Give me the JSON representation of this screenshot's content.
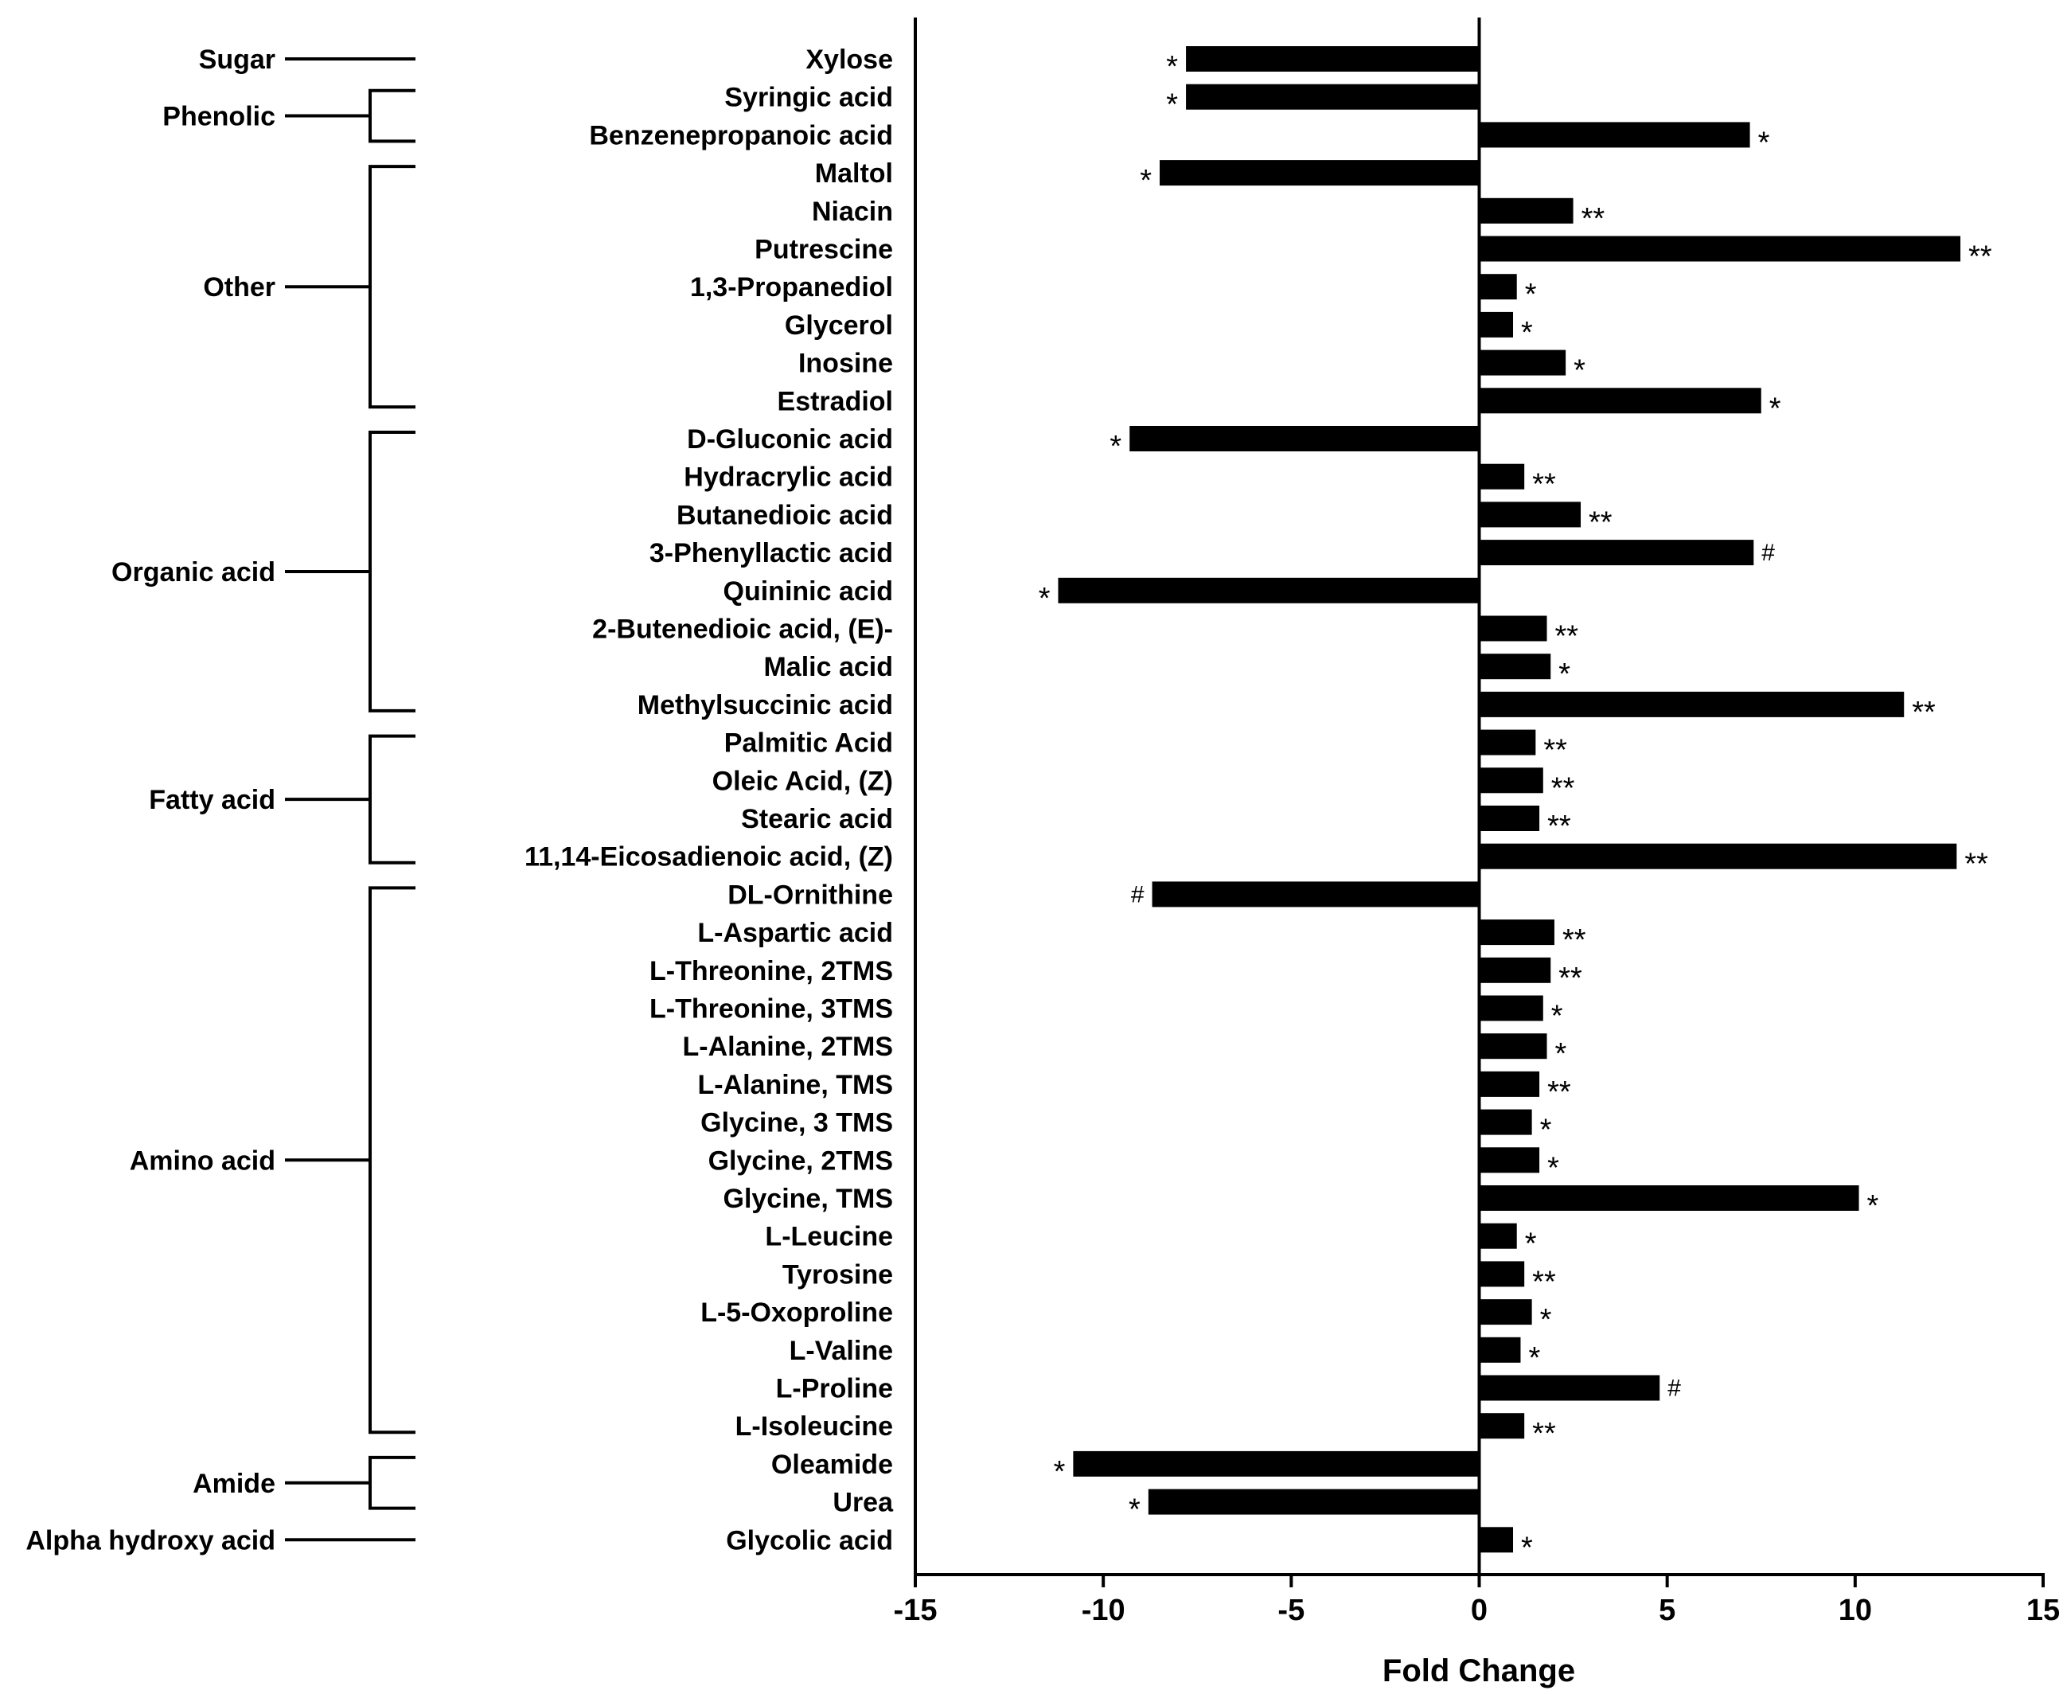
{
  "chart_data": {
    "type": "bar",
    "orientation": "horizontal",
    "xlabel": "Fold Change",
    "xlim": [
      -15,
      15
    ],
    "xticks": [
      -15,
      -10,
      -5,
      0,
      5,
      10,
      15
    ],
    "bars": [
      {
        "label": "Xylose",
        "value": -7.8,
        "sig": "*"
      },
      {
        "label": "Syringic acid",
        "value": -7.8,
        "sig": "*"
      },
      {
        "label": "Benzenepropanoic acid",
        "value": 7.2,
        "sig": "*"
      },
      {
        "label": "Maltol",
        "value": -8.5,
        "sig": "*"
      },
      {
        "label": "Niacin",
        "value": 2.5,
        "sig": "**"
      },
      {
        "label": "Putrescine",
        "value": 12.8,
        "sig": "**"
      },
      {
        "label": "1,3-Propanediol",
        "value": 1.0,
        "sig": "*"
      },
      {
        "label": "Glycerol",
        "value": 0.9,
        "sig": "*"
      },
      {
        "label": "Inosine",
        "value": 2.3,
        "sig": "*"
      },
      {
        "label": "Estradiol",
        "value": 7.5,
        "sig": "*"
      },
      {
        "label": "D-Gluconic acid",
        "value": -9.3,
        "sig": "*"
      },
      {
        "label": "Hydracrylic acid",
        "value": 1.2,
        "sig": "**"
      },
      {
        "label": "Butanedioic acid",
        "value": 2.7,
        "sig": "**"
      },
      {
        "label": "3-Phenyllactic acid",
        "value": 7.3,
        "sig": "#"
      },
      {
        "label": "Quininic acid",
        "value": -11.2,
        "sig": "*"
      },
      {
        "label": "2-Butenedioic acid, (E)-",
        "value": 1.8,
        "sig": "**"
      },
      {
        "label": "Malic acid",
        "value": 1.9,
        "sig": "*"
      },
      {
        "label": "Methylsuccinic acid",
        "value": 11.3,
        "sig": "**"
      },
      {
        "label": "Palmitic Acid",
        "value": 1.5,
        "sig": "**"
      },
      {
        "label": "Oleic Acid, (Z)",
        "value": 1.7,
        "sig": "**"
      },
      {
        "label": "Stearic acid",
        "value": 1.6,
        "sig": "**"
      },
      {
        "label": "11,14-Eicosadienoic acid, (Z)",
        "value": 12.7,
        "sig": "**"
      },
      {
        "label": "DL-Ornithine",
        "value": -8.7,
        "sig": "#"
      },
      {
        "label": "L-Aspartic acid",
        "value": 2.0,
        "sig": "**"
      },
      {
        "label": "L-Threonine, 2TMS",
        "value": 1.9,
        "sig": "**"
      },
      {
        "label": "L-Threonine, 3TMS",
        "value": 1.7,
        "sig": "*"
      },
      {
        "label": "L-Alanine, 2TMS",
        "value": 1.8,
        "sig": "*"
      },
      {
        "label": "L-Alanine, TMS",
        "value": 1.6,
        "sig": "**"
      },
      {
        "label": "Glycine, 3 TMS",
        "value": 1.4,
        "sig": "*"
      },
      {
        "label": "Glycine, 2TMS",
        "value": 1.6,
        "sig": "*"
      },
      {
        "label": "Glycine, TMS",
        "value": 10.1,
        "sig": "*"
      },
      {
        "label": "L-Leucine",
        "value": 1.0,
        "sig": "*"
      },
      {
        "label": "Tyrosine",
        "value": 1.2,
        "sig": "**"
      },
      {
        "label": "L-5-Oxoproline",
        "value": 1.4,
        "sig": "*"
      },
      {
        "label": "L-Valine",
        "value": 1.1,
        "sig": "*"
      },
      {
        "label": "L-Proline",
        "value": 4.8,
        "sig": "#"
      },
      {
        "label": "L-Isoleucine",
        "value": 1.2,
        "sig": "**"
      },
      {
        "label": "Oleamide",
        "value": -10.8,
        "sig": "*"
      },
      {
        "label": "Urea",
        "value": -8.8,
        "sig": "*"
      },
      {
        "label": "Glycolic acid",
        "value": 0.9,
        "sig": "*"
      }
    ],
    "groups": [
      {
        "name": "Sugar",
        "first": 0,
        "last": 0
      },
      {
        "name": "Phenolic",
        "first": 1,
        "last": 2
      },
      {
        "name": "Other",
        "first": 3,
        "last": 9
      },
      {
        "name": "Organic acid",
        "first": 10,
        "last": 17
      },
      {
        "name": "Fatty acid",
        "first": 18,
        "last": 21
      },
      {
        "name": "Amino acid",
        "first": 22,
        "last": 36
      },
      {
        "name": "Amide",
        "first": 37,
        "last": 38
      },
      {
        "name": "Alpha hydroxy acid",
        "first": 39,
        "last": 39
      }
    ]
  }
}
